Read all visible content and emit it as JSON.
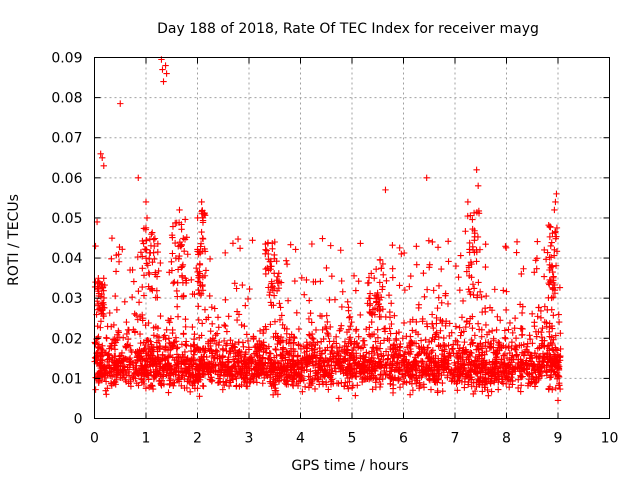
{
  "chart_data": {
    "type": "scatter",
    "title": "Day 188 of 2018, Rate Of TEC Index for receiver mayg",
    "xlabel": "GPS time / hours",
    "ylabel": "ROTI / TECUs",
    "xlim": [
      0,
      10
    ],
    "ylim": [
      0,
      0.09
    ],
    "xticks": [
      "0",
      "1",
      "2",
      "3",
      "4",
      "5",
      "6",
      "7",
      "8",
      "9",
      "10"
    ],
    "yticks": [
      "0",
      "0.01",
      "0.02",
      "0.03",
      "0.04",
      "0.05",
      "0.06",
      "0.07",
      "0.08",
      "0.09"
    ],
    "grid": true,
    "marker": "+",
    "color": "#ff0000",
    "data_extent_hours": [
      0,
      9.05
    ],
    "series": [
      {
        "name": "ROTI",
        "notable_points": [
          {
            "x": 0.02,
            "y": 0.034
          },
          {
            "x": 0.02,
            "y": 0.043
          },
          {
            "x": 0.05,
            "y": 0.049
          },
          {
            "x": 0.12,
            "y": 0.066
          },
          {
            "x": 0.15,
            "y": 0.065
          },
          {
            "x": 0.18,
            "y": 0.063
          },
          {
            "x": 0.5,
            "y": 0.0785
          },
          {
            "x": 0.85,
            "y": 0.06
          },
          {
            "x": 1.0,
            "y": 0.054
          },
          {
            "x": 1.02,
            "y": 0.05
          },
          {
            "x": 1.3,
            "y": 0.0895
          },
          {
            "x": 1.32,
            "y": 0.087
          },
          {
            "x": 1.34,
            "y": 0.084
          },
          {
            "x": 1.38,
            "y": 0.088
          },
          {
            "x": 1.4,
            "y": 0.086
          },
          {
            "x": 1.65,
            "y": 0.052
          },
          {
            "x": 2.08,
            "y": 0.054
          },
          {
            "x": 2.1,
            "y": 0.05
          },
          {
            "x": 3.5,
            "y": 0.044
          },
          {
            "x": 5.65,
            "y": 0.057
          },
          {
            "x": 6.45,
            "y": 0.06
          },
          {
            "x": 7.42,
            "y": 0.062
          },
          {
            "x": 7.45,
            "y": 0.058
          },
          {
            "x": 7.25,
            "y": 0.054
          },
          {
            "x": 8.97,
            "y": 0.056
          },
          {
            "x": 8.95,
            "y": 0.054
          },
          {
            "x": 8.93,
            "y": 0.052
          },
          {
            "x": 9.0,
            "y": 0.0045
          }
        ],
        "bulk_distribution": {
          "x_range": [
            0,
            9.05
          ],
          "typical_y_range": [
            0.005,
            0.03
          ],
          "median_y": 0.013,
          "count_estimate": 3000
        }
      }
    ]
  }
}
